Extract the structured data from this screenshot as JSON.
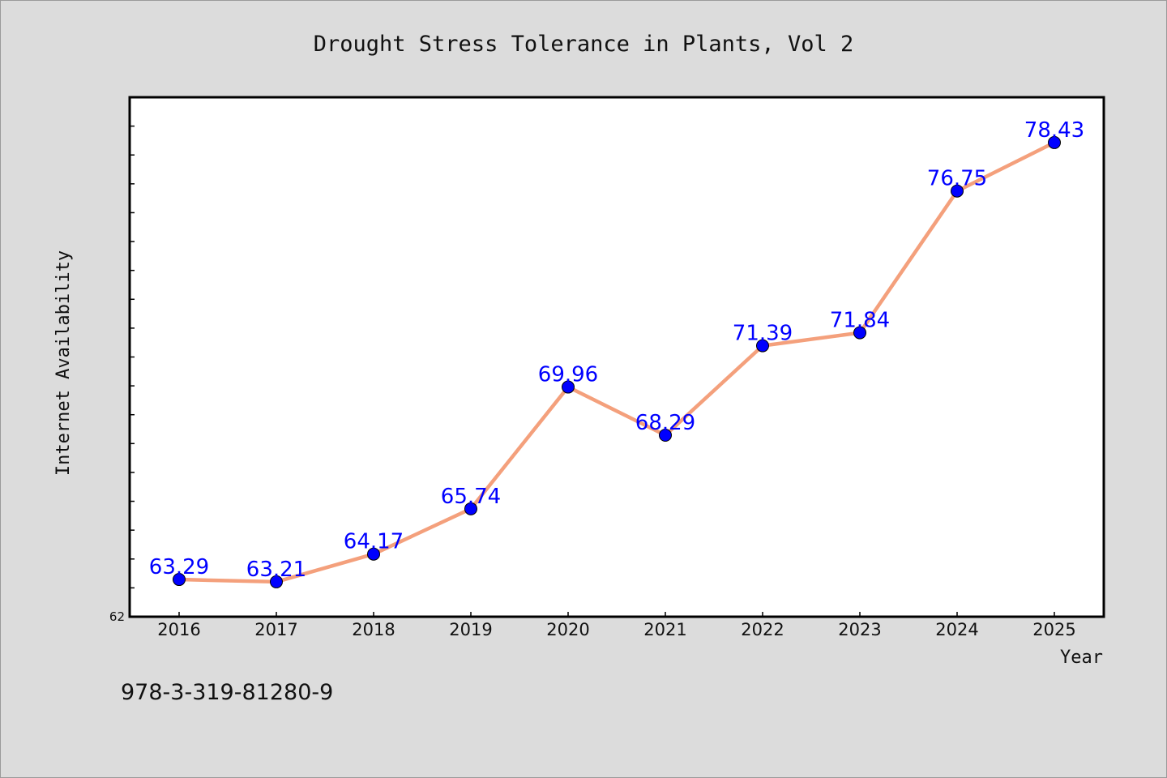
{
  "chart_data": {
    "type": "line",
    "title": "Drought Stress Tolerance in Plants, Vol 2",
    "xlabel": "Year",
    "ylabel": "Internet Availability",
    "categories": [
      "2016",
      "2017",
      "2018",
      "2019",
      "2020",
      "2021",
      "2022",
      "2023",
      "2024",
      "2025"
    ],
    "series": [
      {
        "values": [
          63.29,
          63.21,
          64.17,
          65.74,
          69.96,
          68.29,
          71.39,
          71.84,
          76.75,
          78.43
        ],
        "data_labels": [
          "63.29",
          "63.21",
          "64.17",
          "65.74",
          "69.96",
          "68.29",
          "71.39",
          "71.84",
          "76.75",
          "78.43"
        ]
      }
    ],
    "ylim": [
      62,
      80
    ],
    "y_tick_labels": [
      "62"
    ],
    "y_minor_tick_step": 1,
    "grid": false,
    "colors": {
      "line": "#f4a07c",
      "marker": "#0000ff",
      "data_label": "#0000ff",
      "plot_background": "#ffffff",
      "figure_background": "#dcdcdc"
    }
  },
  "footer": {
    "isbn": "978-3-319-81280-9"
  }
}
